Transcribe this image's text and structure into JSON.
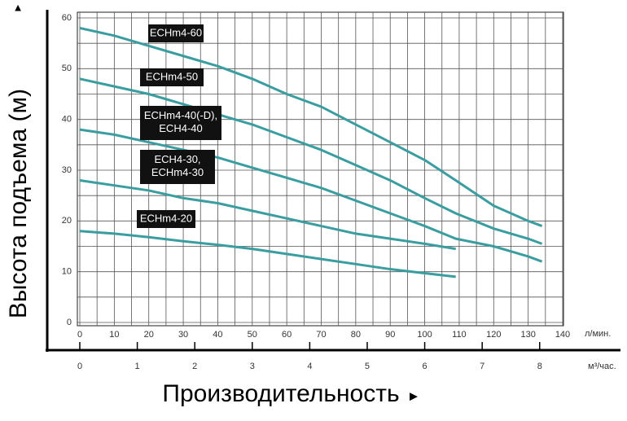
{
  "chart_data": {
    "type": "line",
    "y_label": "Высота подъема (м)",
    "x_label": "Производительность",
    "x_unit": "л/мин.",
    "x2_unit": "м³/час.",
    "x": [
      0,
      10,
      20,
      30,
      40,
      50,
      60,
      70,
      80,
      90,
      100,
      109,
      120,
      130,
      134
    ],
    "xlim": [
      0,
      140
    ],
    "xticks": [
      0,
      10,
      20,
      30,
      40,
      50,
      60,
      70,
      80,
      90,
      100,
      110,
      120,
      130,
      140
    ],
    "x2lim": [
      0,
      8.4
    ],
    "x2ticks": [
      0,
      1,
      2,
      3,
      4,
      5,
      6,
      7,
      8
    ],
    "ylim": [
      0,
      60
    ],
    "yticks": [
      0,
      10,
      20,
      30,
      40,
      50,
      60
    ],
    "grid": true,
    "minor_grid": true,
    "series": [
      {
        "name": "ECHm4-60",
        "color": "#3a9da0",
        "values": [
          58,
          56.5,
          54.5,
          52.5,
          50.5,
          48,
          45,
          42.5,
          39,
          35.5,
          32,
          28,
          23,
          20,
          19
        ]
      },
      {
        "name": "ECHm4-50",
        "color": "#3a9da0",
        "values": [
          48,
          46.5,
          45,
          43,
          41,
          39,
          36.5,
          34,
          31,
          28,
          24.5,
          21.5,
          18.5,
          16.5,
          15.5
        ]
      },
      {
        "name": "ECHm4-40(-D),\nECH4-40",
        "color": "#3a9da0",
        "values": [
          38,
          37,
          35.5,
          34,
          32.5,
          30.5,
          28.5,
          26.5,
          24,
          21.5,
          19,
          16.5,
          15,
          13,
          12
        ]
      },
      {
        "name": "ECH4-30,\nECHm4-30",
        "color": "#3a9da0",
        "values": [
          28,
          27,
          26,
          24.5,
          23.5,
          22,
          20.5,
          19,
          17.5,
          16.5,
          15.5,
          14.5,
          null,
          null,
          null
        ]
      },
      {
        "name": "ECHm4-20",
        "color": "#3a9da0",
        "values": [
          18,
          17.5,
          16.8,
          16,
          15.3,
          14.5,
          13.5,
          12.5,
          11.5,
          10.5,
          9.7,
          9,
          null,
          null,
          null
        ]
      }
    ]
  }
}
